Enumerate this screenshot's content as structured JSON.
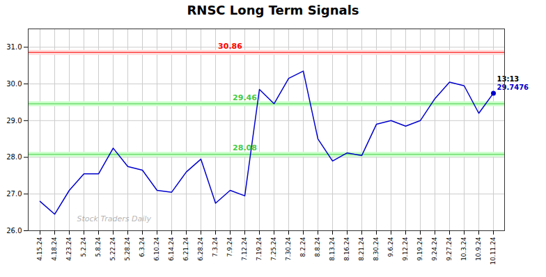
{
  "chart_data": {
    "type": "line",
    "title": "RNSC Long Term Signals",
    "categories": [
      "4.15.24",
      "4.18.24",
      "4.23.24",
      "5.2.24",
      "5.8.24",
      "5.22.24",
      "5.28.24",
      "6.3.24",
      "6.10.24",
      "6.14.24",
      "6.21.24",
      "6.28.24",
      "7.3.24",
      "7.9.24",
      "7.12.24",
      "7.19.24",
      "7.25.24",
      "7.30.24",
      "8.2.24",
      "8.8.24",
      "8.13.24",
      "8.16.24",
      "8.21.24",
      "8.30.24",
      "9.6.24",
      "9.12.24",
      "9.19.24",
      "9.24.24",
      "9.27.24",
      "10.3.24",
      "10.9.24",
      "10.11.24"
    ],
    "values": [
      26.8,
      26.45,
      27.1,
      27.55,
      27.55,
      28.25,
      27.75,
      27.65,
      27.1,
      27.05,
      27.6,
      27.95,
      26.75,
      27.1,
      26.95,
      29.85,
      29.46,
      30.15,
      30.35,
      28.5,
      27.9,
      28.12,
      28.05,
      28.9,
      29.0,
      28.85,
      29.0,
      29.6,
      30.05,
      29.95,
      29.2,
      29.7476
    ],
    "color": "#0000cc",
    "ylim": [
      26.0,
      31.5
    ],
    "yticks": [
      26,
      27,
      28,
      29,
      30,
      31
    ],
    "grid": true,
    "hlines": [
      {
        "value": 30.86,
        "label": "30.86",
        "color": "#ff0000",
        "fill": "#ffdddd"
      },
      {
        "value": 29.46,
        "label": "29.46",
        "color": "#44cc44",
        "fill": "#ccffcc"
      },
      {
        "value": 28.08,
        "label": "28.08",
        "color": "#44cc44",
        "fill": "#ccffcc"
      }
    ],
    "annotations": [
      {
        "text": "13:13",
        "x": "10.11.24",
        "y": 29.7476,
        "color": "#000000"
      },
      {
        "text": "29.7476",
        "x": "10.11.24",
        "y": 29.7476,
        "color": "#0000cc"
      }
    ],
    "watermark": "Stock Traders Daily"
  }
}
